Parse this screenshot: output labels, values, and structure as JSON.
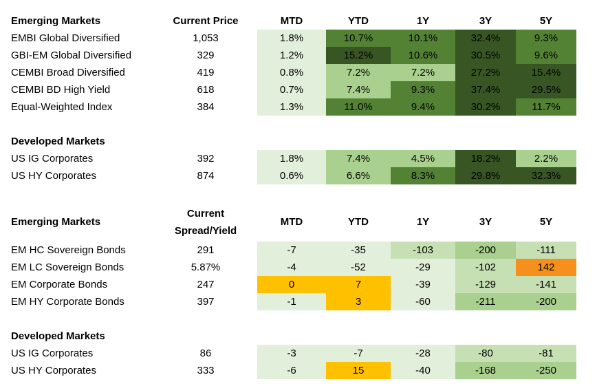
{
  "colors": {
    "green_light": "#e2efda",
    "green_mid": "#a9d08e",
    "green_dark": "#548235",
    "green_darker": "#375623",
    "yellow": "#ffc000",
    "orange": "#f4901b"
  },
  "table1": {
    "header": {
      "title": "Emerging Markets",
      "price": "Current Price",
      "cols": [
        "MTD",
        "YTD",
        "1Y",
        "3Y",
        "5Y"
      ]
    },
    "rows": [
      {
        "name": "EMBI Global Diversified",
        "price": "1,053",
        "vals": [
          "1.8%",
          "10.7%",
          "10.1%",
          "32.4%",
          "9.3%"
        ]
      },
      {
        "name": "GBI-EM Global Diversified",
        "price": "329",
        "vals": [
          "1.2%",
          "15.2%",
          "10.6%",
          "30.5%",
          "9.6%"
        ]
      },
      {
        "name": "CEMBI Broad Diversified",
        "price": "419",
        "vals": [
          "0.8%",
          "7.2%",
          "7.2%",
          "27.2%",
          "15.4%"
        ]
      },
      {
        "name": "CEMBI BD High Yield",
        "price": "618",
        "vals": [
          "0.7%",
          "7.4%",
          "9.3%",
          "37.4%",
          "29.5%"
        ]
      },
      {
        "name": "Equal-Weighted Index",
        "price": "384",
        "vals": [
          "1.3%",
          "11.0%",
          "9.4%",
          "30.2%",
          "11.7%"
        ]
      }
    ],
    "dev_title": "Developed Markets",
    "dev_rows": [
      {
        "name": "US IG Corporates",
        "price": "392",
        "vals": [
          "1.8%",
          "7.4%",
          "4.5%",
          "18.2%",
          "2.2%"
        ]
      },
      {
        "name": "US HY Corporates",
        "price": "874",
        "vals": [
          "0.6%",
          "6.6%",
          "8.3%",
          "29.8%",
          "32.3%"
        ]
      }
    ]
  },
  "table2": {
    "header": {
      "title": "Emerging Markets",
      "price_line1": "Current",
      "price_line2": "Spread/Yield",
      "cols": [
        "MTD",
        "YTD",
        "1Y",
        "3Y",
        "5Y"
      ]
    },
    "rows": [
      {
        "name": "EM HC Sovereign Bonds",
        "price": "291",
        "vals": [
          "-7",
          "-35",
          "-103",
          "-200",
          "-111"
        ]
      },
      {
        "name": "EM LC Sovereign Bonds",
        "price": "5.87%",
        "vals": [
          "-4",
          "-52",
          "-29",
          "-102",
          "142"
        ]
      },
      {
        "name": "EM Corporate Bonds",
        "price": "247",
        "vals": [
          "0",
          "7",
          "-39",
          "-129",
          "-141"
        ]
      },
      {
        "name": "EM HY Corporate Bonds",
        "price": "397",
        "vals": [
          "-1",
          "3",
          "-60",
          "-211",
          "-200"
        ]
      }
    ],
    "dev_title": "Developed Markets",
    "dev_rows": [
      {
        "name": "US IG Corporates",
        "price": "86",
        "vals": [
          "-3",
          "-7",
          "-28",
          "-80",
          "-81"
        ]
      },
      {
        "name": "US HY Corporates",
        "price": "333",
        "vals": [
          "-6",
          "15",
          "-40",
          "-168",
          "-250"
        ]
      }
    ]
  }
}
